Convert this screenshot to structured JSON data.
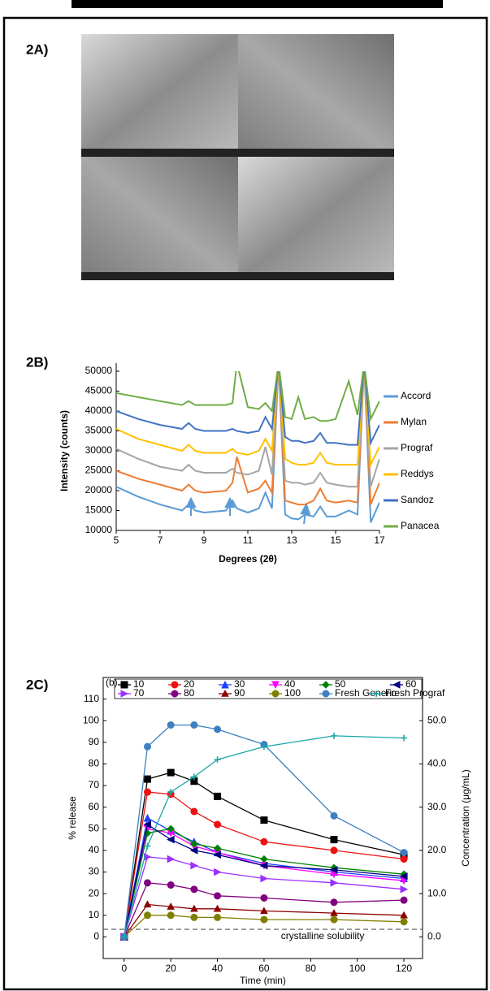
{
  "panel_labels": [
    "2A)",
    "2B)",
    "2C)"
  ],
  "chart_data": [
    {
      "type": "line",
      "x_label": "Degrees (2θ)",
      "y_label": "Intensity (counts)",
      "x": [
        5,
        6,
        7,
        8,
        8.3,
        8.6,
        9,
        10,
        10.3,
        10.5,
        11,
        11.5,
        11.8,
        12.1,
        12.4,
        12.7,
        13,
        13.3,
        13.6,
        14,
        14.3,
        14.6,
        15,
        15.6,
        16,
        16.3,
        16.6,
        17
      ],
      "xlim": [
        5,
        17
      ],
      "xticks": [
        5,
        7,
        9,
        11,
        13,
        15,
        17
      ],
      "ylim": [
        10000,
        50000
      ],
      "yticks": [
        10000,
        15000,
        20000,
        25000,
        30000,
        35000,
        40000,
        45000,
        50000
      ],
      "legend": "right",
      "series": [
        {
          "name": "Accord",
          "color": "#5b9bd5",
          "values": [
            21000,
            18500,
            16500,
            15000,
            16500,
            15000,
            14500,
            15000,
            17500,
            15500,
            14500,
            15500,
            19500,
            15500,
            52000,
            14000,
            13000,
            12800,
            14000,
            13500,
            16000,
            13500,
            13500,
            15000,
            14000,
            52000,
            12000,
            17000
          ]
        },
        {
          "name": "Mylan",
          "color": "#ed7d31",
          "values": [
            25000,
            23000,
            21500,
            20000,
            21500,
            20000,
            19500,
            20000,
            22000,
            28500,
            19500,
            20500,
            22500,
            19500,
            52000,
            17500,
            17000,
            16500,
            16500,
            17500,
            20500,
            17500,
            17000,
            17500,
            17000,
            52000,
            16500,
            22000
          ]
        },
        {
          "name": "Prograf",
          "color": "#a5a5a5",
          "values": [
            30500,
            28000,
            26000,
            25000,
            26500,
            25000,
            24500,
            24500,
            25500,
            24500,
            24000,
            25000,
            31000,
            24000,
            52000,
            22500,
            22000,
            22000,
            21500,
            22000,
            24500,
            22000,
            21500,
            21000,
            21000,
            52000,
            21000,
            28000
          ]
        },
        {
          "name": "Reddys",
          "color": "#ffc000",
          "values": [
            35500,
            33000,
            31500,
            30000,
            31500,
            30000,
            29500,
            29500,
            30500,
            29500,
            29000,
            30000,
            33000,
            30000,
            52000,
            28000,
            27000,
            26500,
            26500,
            27000,
            29500,
            27000,
            26500,
            26500,
            26500,
            52000,
            26500,
            31000
          ]
        },
        {
          "name": "Sandoz",
          "color": "#4472c4",
          "values": [
            40000,
            38000,
            36500,
            35500,
            37000,
            35500,
            35000,
            35000,
            35500,
            35000,
            34500,
            35000,
            38500,
            35500,
            52000,
            33500,
            32500,
            32500,
            32000,
            32500,
            34500,
            32000,
            32000,
            31500,
            31500,
            52000,
            32000,
            36500
          ]
        },
        {
          "name": "Panacea",
          "color": "#70ad47",
          "values": [
            44500,
            43500,
            42500,
            41500,
            42500,
            41500,
            41500,
            41500,
            42000,
            52000,
            41000,
            40500,
            42000,
            40000,
            52000,
            38500,
            38000,
            43500,
            38000,
            38500,
            37500,
            37500,
            38000,
            47500,
            39000,
            52000,
            38000,
            42500
          ]
        }
      ]
    },
    {
      "type": "line",
      "annotation": "(b)",
      "x_label": "Time (min)",
      "y_label": "% release",
      "y2_label": "Concentration (μg/mL)",
      "x": [
        0,
        10,
        20,
        30,
        40,
        60,
        90,
        120
      ],
      "xlim": [
        -9,
        128
      ],
      "xticks": [
        0,
        20,
        40,
        60,
        80,
        100,
        120
      ],
      "ylim": [
        -10,
        120
      ],
      "yticks": [
        0,
        10,
        20,
        30,
        40,
        50,
        60,
        70,
        80,
        90,
        100,
        110
      ],
      "y2lim": [
        -5,
        60
      ],
      "y2ticks": [
        {
          "value": 0,
          "label": "0.0"
        },
        {
          "value": 10,
          "label": "10.0"
        },
        {
          "value": 20,
          "label": "20.0"
        },
        {
          "value": 30,
          "label": "30.0"
        },
        {
          "value": 40,
          "label": "40.0"
        },
        {
          "value": 50,
          "label": "50.0"
        }
      ],
      "reference": {
        "value": 3.5,
        "label": "crystalline solubility"
      },
      "legend": "top",
      "series": [
        {
          "name": "10",
          "color": "#000000",
          "marker": "square",
          "values": [
            0,
            73,
            76,
            72,
            65,
            54,
            45,
            38
          ]
        },
        {
          "name": "20",
          "color": "#ee1111",
          "marker": "circle",
          "values": [
            0,
            67,
            66,
            58,
            52,
            44,
            40,
            36
          ]
        },
        {
          "name": "30",
          "color": "#1f3fff",
          "marker": "triangle",
          "values": [
            0,
            55,
            49,
            44,
            39,
            34,
            30,
            27
          ]
        },
        {
          "name": "40",
          "color": "#ff00ff",
          "marker": "triangle-down",
          "values": [
            0,
            50,
            48,
            42,
            39,
            33,
            29,
            26
          ]
        },
        {
          "name": "50",
          "color": "#008000",
          "marker": "diamond",
          "values": [
            0,
            48,
            50,
            43,
            41,
            36,
            32,
            29
          ]
        },
        {
          "name": "60",
          "color": "#000080",
          "marker": "triangle-left",
          "values": [
            0,
            52,
            45,
            40,
            38,
            33,
            31,
            28
          ]
        },
        {
          "name": "70",
          "color": "#9b30ff",
          "marker": "triangle-right",
          "values": [
            0,
            37,
            36,
            33,
            30,
            27,
            25,
            22
          ]
        },
        {
          "name": "80",
          "color": "#800080",
          "marker": "circle",
          "values": [
            0,
            25,
            24,
            22,
            19,
            18,
            16,
            17
          ]
        },
        {
          "name": "90",
          "color": "#8b0000",
          "marker": "star",
          "values": [
            0,
            15,
            14,
            13,
            13,
            12,
            11,
            10
          ]
        },
        {
          "name": "100",
          "color": "#808000",
          "marker": "circle",
          "values": [
            0,
            10,
            10,
            9,
            9,
            8,
            8,
            7
          ]
        },
        {
          "name": "Fresh Generic",
          "color": "#3e7fbf",
          "marker": "circle",
          "axis": "y2",
          "values": [
            0,
            44,
            49,
            49,
            48,
            44.5,
            28,
            19.5
          ]
        },
        {
          "name": "Fresh Prograf",
          "color": "#1aa6a6",
          "marker": "plus",
          "axis": "y2",
          "values": [
            0,
            21,
            33.5,
            37,
            41,
            44,
            46.5,
            46
          ]
        }
      ]
    }
  ]
}
